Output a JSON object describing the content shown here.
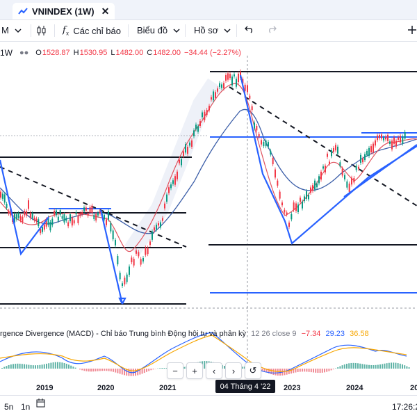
{
  "tab": {
    "title": "VNINDEX (1W)",
    "close": "✕"
  },
  "toolbar": {
    "interval": "M",
    "indicators_label": "Các chỉ báo",
    "chart_type_label": "Biểu đồ",
    "profile_label": "Hồ sơ"
  },
  "legend": {
    "interval": "1W",
    "open_k": "O",
    "open": "1528.87",
    "high_k": "H",
    "high": "1530.95",
    "low_k": "L",
    "low": "1482.00",
    "close_k": "C",
    "close": "1482.00",
    "change": "−34.44 (−2.27%)"
  },
  "macd": {
    "title": "rgence Divergence (MACD) - Chỉ báo Trung bình Động hội tụ và phân kỳ",
    "params": "12 26 close 9",
    "v1": "−7.34",
    "v2": "29.23",
    "v3": "36.58"
  },
  "xaxis": {
    "labels": [
      "2019",
      "2020",
      "2021",
      "2023",
      "2024",
      "20"
    ]
  },
  "crosshair_date": "04 Tháng 4 '22",
  "nav": {
    "zoom_out": "−",
    "zoom_in": "+",
    "back": "‹",
    "forward": "›",
    "reset": "↺"
  },
  "bottom": {
    "range1": "5n",
    "range2": "1n",
    "time": "17:26:2"
  },
  "colors": {
    "up": "#089981",
    "down": "#f23645",
    "trend": "#2962ff",
    "ma_red": "#e0525e",
    "ma_blue": "#3b5ea8",
    "orange": "#f7a600"
  },
  "chart_data": {
    "type": "candlestick",
    "series": [
      {
        "name": "VNINDEX",
        "x": [
          "2019",
          "2020",
          "2021",
          "2022",
          "2023",
          "2024"
        ],
        "values": [
          980,
          960,
          1100,
          1480,
          1060,
          1250
        ]
      }
    ],
    "levels": [
      1530,
      1200,
      1000,
      900,
      660,
      1060
    ]
  }
}
